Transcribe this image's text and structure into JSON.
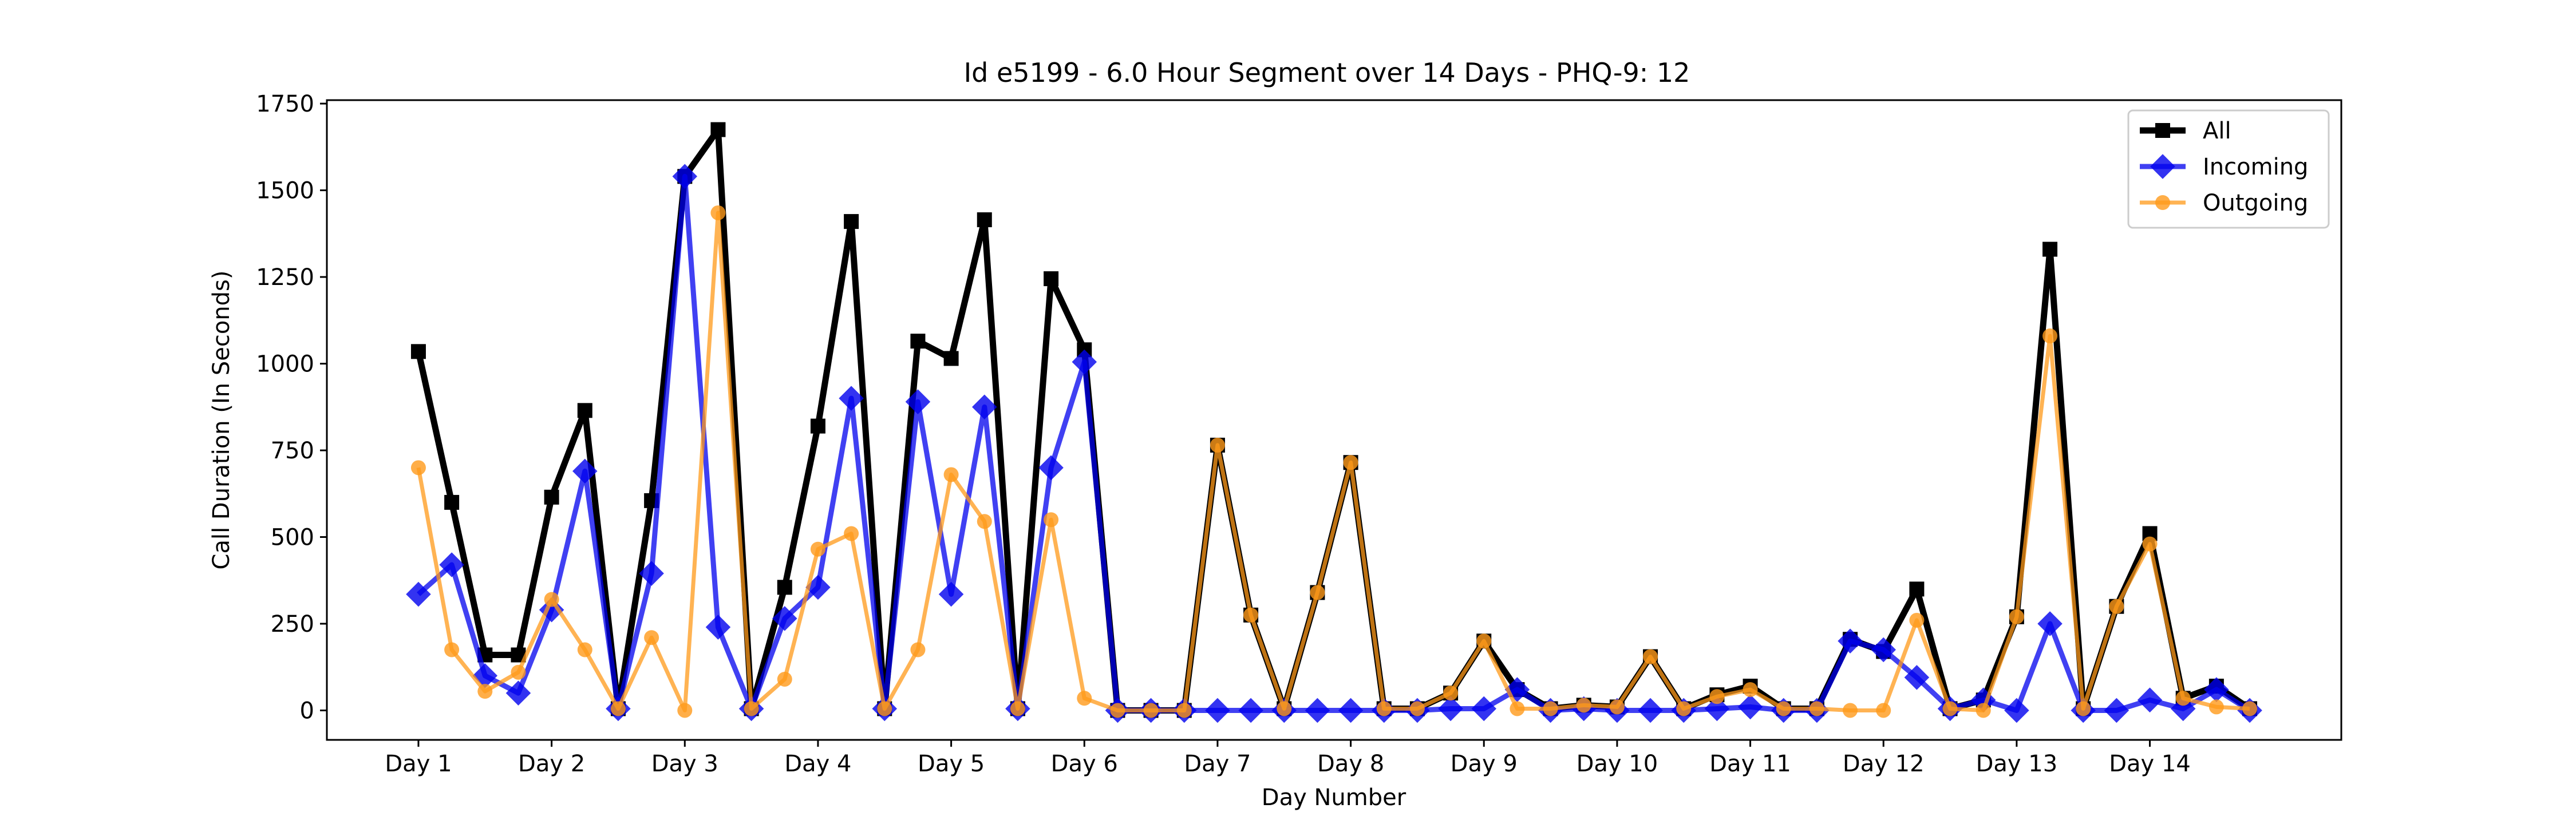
{
  "chart_data": {
    "type": "line",
    "title": "Id e5199 - 6.0 Hour Segment over 14 Days - PHQ-9: 12",
    "xlabel": "Day Number",
    "ylabel": "Call Duration (In Seconds)",
    "xticks": [
      {
        "x": 0,
        "label": "Day 1"
      },
      {
        "x": 4,
        "label": "Day 2"
      },
      {
        "x": 8,
        "label": "Day 3"
      },
      {
        "x": 12,
        "label": "Day 4"
      },
      {
        "x": 16,
        "label": "Day 5"
      },
      {
        "x": 20,
        "label": "Day 6"
      },
      {
        "x": 24,
        "label": "Day 7"
      },
      {
        "x": 28,
        "label": "Day 8"
      },
      {
        "x": 32,
        "label": "Day 9"
      },
      {
        "x": 36,
        "label": "Day 10"
      },
      {
        "x": 40,
        "label": "Day 11"
      },
      {
        "x": 44,
        "label": "Day 12"
      },
      {
        "x": 48,
        "label": "Day 13"
      },
      {
        "x": 52,
        "label": "Day 14"
      }
    ],
    "yticks": [
      0,
      250,
      500,
      750,
      1000,
      1250,
      1500,
      1750
    ],
    "xlim": [
      -2.75,
      57.75
    ],
    "ylim": [
      -85,
      1760
    ],
    "legend_position": "top-right",
    "series": [
      {
        "name": "All",
        "color": "#000000",
        "marker": "square",
        "values": [
          1035,
          600,
          160,
          160,
          615,
          865,
          5,
          605,
          1540,
          1675,
          5,
          355,
          820,
          1410,
          5,
          1065,
          1015,
          1415,
          5,
          1245,
          1040,
          0,
          0,
          0,
          765,
          275,
          5,
          340,
          715,
          5,
          5,
          50,
          200,
          60,
          5,
          15,
          10,
          155,
          5,
          45,
          70,
          5,
          5,
          205,
          170,
          350,
          5,
          30,
          270,
          1330,
          5,
          300,
          510,
          35,
          70,
          5
        ]
      },
      {
        "name": "Incoming",
        "color": "#0000ee",
        "marker": "diamond",
        "values": [
          335,
          420,
          100,
          50,
          290,
          690,
          5,
          395,
          1540,
          240,
          5,
          265,
          355,
          900,
          5,
          890,
          335,
          875,
          5,
          700,
          1005,
          0,
          0,
          0,
          0,
          0,
          0,
          0,
          0,
          0,
          0,
          5,
          5,
          60,
          0,
          5,
          0,
          0,
          0,
          5,
          10,
          0,
          0,
          200,
          175,
          95,
          5,
          30,
          0,
          250,
          0,
          0,
          30,
          5,
          60,
          0
        ]
      },
      {
        "name": "Outgoing",
        "color": "#ff9a1a",
        "marker": "circle",
        "values": [
          700,
          175,
          55,
          110,
          320,
          175,
          5,
          210,
          0,
          1435,
          5,
          90,
          465,
          510,
          5,
          175,
          680,
          545,
          5,
          550,
          35,
          0,
          0,
          0,
          765,
          275,
          5,
          340,
          715,
          5,
          5,
          50,
          200,
          5,
          5,
          15,
          10,
          155,
          5,
          40,
          60,
          5,
          5,
          0,
          0,
          260,
          5,
          0,
          270,
          1080,
          5,
          300,
          480,
          35,
          10,
          5
        ]
      }
    ]
  }
}
